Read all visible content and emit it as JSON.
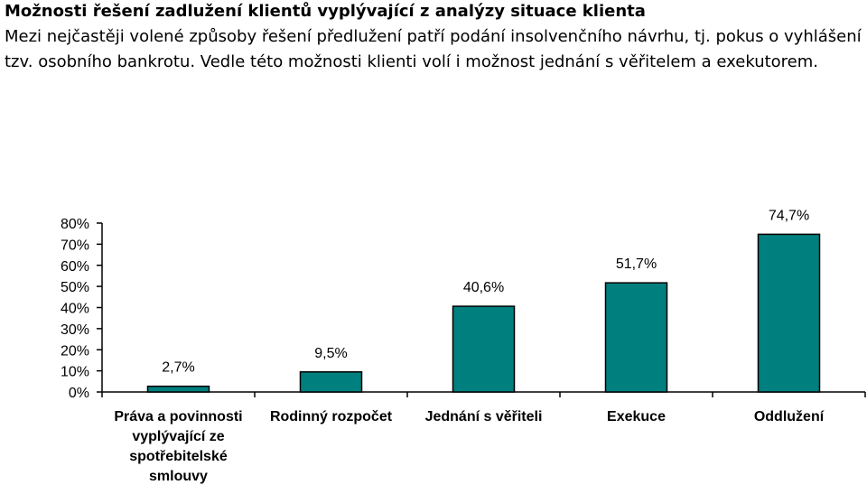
{
  "header": {
    "title": "Možnosti řešení zadlužení klientů vyplývající z analýzy situace klienta",
    "intro": "Mezi nejčastěji volené způsoby řešení předlužení patří podání insolvenčního návrhu, tj. pokus o vyhlášení tzv. osobního bankrotu. Vedle této možnosti klienti volí  i možnost jednání s věřitelem a exekutorem."
  },
  "colors": {
    "bar_fill": "#007f7f",
    "bar_stroke": "#000000",
    "axis": "#000000"
  },
  "chart_data": {
    "type": "bar",
    "categories": [
      "Práva a povinnosti vyplývající ze spotřebitelské smlouvy",
      "Rodinný rozpočet",
      "Jednání s věřiteli",
      "Exekuce",
      "Oddlužení"
    ],
    "category_lines": [
      [
        "Práva a povinnosti",
        "vyplývající ze",
        "spotřebitelské",
        "smlouvy"
      ],
      [
        "Rodinný rozpočet"
      ],
      [
        "Jednání s věřiteli"
      ],
      [
        "Exekuce"
      ],
      [
        "Oddlužení"
      ]
    ],
    "values": [
      2.7,
      9.5,
      40.6,
      51.7,
      74.7
    ],
    "value_labels": [
      "2,7%",
      "9,5%",
      "40,6%",
      "51,7%",
      "74,7%"
    ],
    "ylim": [
      0,
      80
    ],
    "yticks": [
      0,
      10,
      20,
      30,
      40,
      50,
      60,
      70,
      80
    ],
    "ytick_labels": [
      "0%",
      "10%",
      "20%",
      "30%",
      "40%",
      "50%",
      "60%",
      "70%",
      "80%"
    ],
    "grid": false,
    "legend": "none"
  }
}
